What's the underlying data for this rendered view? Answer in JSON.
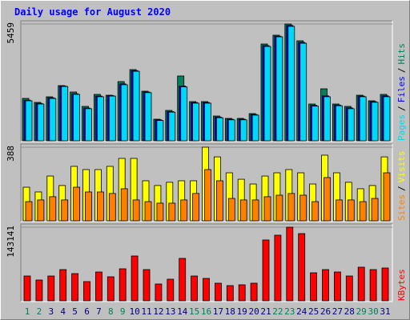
{
  "title": "Daily usage for August 2020",
  "chart_data": [
    {
      "type": "bar",
      "ylim": [
        0,
        5459
      ],
      "yticks": [
        5459
      ],
      "legend_separator": "/",
      "series": [
        {
          "name": "Pages",
          "color": "#00d8f8",
          "values": [
            1870,
            1720,
            1980,
            2540,
            2170,
            1500,
            2060,
            2090,
            2620,
            3250,
            2250,
            950,
            1340,
            2520,
            1760,
            1760,
            1080,
            980,
            980,
            1200,
            4410,
            4860,
            5350,
            4560,
            1620,
            2060,
            1640,
            1500,
            2060,
            1800,
            2060
          ]
        },
        {
          "name": "Files",
          "color": "#0000ff",
          "values": [
            1900,
            1750,
            2010,
            2560,
            2200,
            1530,
            2090,
            2110,
            2660,
            3280,
            2280,
            980,
            1370,
            2560,
            1790,
            1790,
            1110,
            1010,
            1010,
            1230,
            4450,
            4890,
            5390,
            4600,
            1660,
            2100,
            1670,
            1540,
            2090,
            1830,
            2100
          ]
        },
        {
          "name": "Hits",
          "color": "#00805c",
          "values": [
            1982,
            1795,
            2056,
            2580,
            2281,
            1608,
            2169,
            2131,
            2767,
            3328,
            2318,
            1010,
            1421,
            3029,
            1832,
            1832,
            1159,
            1047,
            1047,
            1271,
            4524,
            4936,
            5459,
            4674,
            1720,
            2430,
            1720,
            1608,
            2131,
            1870,
            2169
          ]
        }
      ]
    },
    {
      "type": "bar",
      "ylim": [
        0,
        388
      ],
      "yticks": [
        388
      ],
      "legend_separator": "/",
      "series": [
        {
          "name": "Sites",
          "color": "#ff8000",
          "values": [
            101,
            110,
            127,
            110,
            177,
            152,
            152,
            144,
            169,
            110,
            101,
            93,
            93,
            110,
            144,
            270,
            211,
            118,
            110,
            110,
            127,
            135,
            144,
            135,
            101,
            228,
            110,
            110,
            101,
            118,
            253
          ]
        },
        {
          "name": "Visits",
          "color": "#ffff00",
          "values": [
            177,
            152,
            236,
            186,
            287,
            270,
            270,
            287,
            329,
            329,
            211,
            186,
            203,
            211,
            211,
            388,
            337,
            253,
            219,
            194,
            236,
            253,
            270,
            253,
            194,
            346,
            253,
            203,
            169,
            186,
            337
          ]
        }
      ]
    },
    {
      "type": "bar",
      "ylim": [
        0,
        143141
      ],
      "yticks": [
        143141
      ],
      "legend_separator": "/",
      "series": [
        {
          "name": "KBytes",
          "color": "#ff0000",
          "values": [
            48240,
            40460,
            48240,
            60690,
            52900,
            37350,
            56020,
            46680,
            62240,
            87140,
            60690,
            32680,
            42010,
            82470,
            48240,
            43570,
            34230,
            29560,
            31120,
            34230,
            118260,
            127590,
            143141,
            130710,
            54460,
            60690,
            56020,
            48240,
            65350,
            60690,
            63800
          ]
        }
      ],
      "categories": [
        "1",
        "2",
        "3",
        "4",
        "5",
        "6",
        "7",
        "8",
        "9",
        "10",
        "11",
        "12",
        "13",
        "14",
        "15",
        "16",
        "17",
        "18",
        "19",
        "20",
        "21",
        "22",
        "23",
        "24",
        "25",
        "26",
        "27",
        "28",
        "29",
        "30",
        "31"
      ],
      "category_colors": [
        "#00805c",
        "#00805c",
        "#000080",
        "#000080",
        "#000080",
        "#000080",
        "#000080",
        "#00805c",
        "#00805c",
        "#000080",
        "#000080",
        "#000080",
        "#000080",
        "#000080",
        "#00805c",
        "#00805c",
        "#000080",
        "#000080",
        "#000080",
        "#000080",
        "#000080",
        "#00805c",
        "#00805c",
        "#000080",
        "#000080",
        "#000080",
        "#000080",
        "#000080",
        "#00805c",
        "#00805c",
        "#000080"
      ]
    }
  ]
}
